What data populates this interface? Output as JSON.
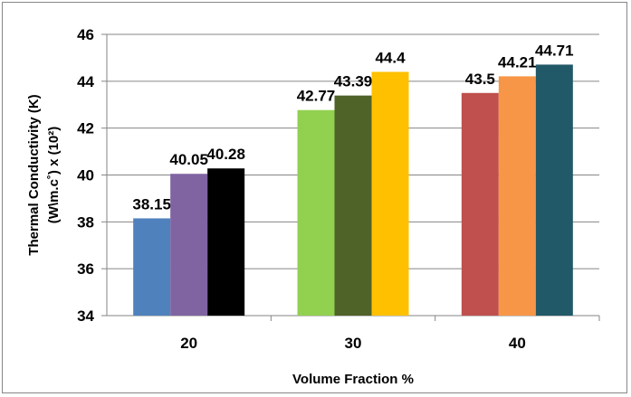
{
  "chart_data": {
    "type": "bar",
    "categories": [
      "20",
      "30",
      "40"
    ],
    "groups": [
      {
        "category": "20",
        "values": [
          38.15,
          40.05,
          40.28
        ],
        "labels": [
          "38.15",
          "40.05",
          "40.28"
        ],
        "colors": [
          "#4f81bd",
          "#8064a2",
          "#000000"
        ]
      },
      {
        "category": "30",
        "values": [
          42.77,
          43.39,
          44.4
        ],
        "labels": [
          "42.77",
          "43.39",
          "44.4"
        ],
        "colors": [
          "#92d050",
          "#4f6228",
          "#ffc000"
        ]
      },
      {
        "category": "40",
        "values": [
          43.5,
          44.21,
          44.71
        ],
        "labels": [
          "43.5",
          "44.21",
          "44.71"
        ],
        "colors": [
          "#c0504d",
          "#f79646",
          "#215968"
        ]
      }
    ],
    "y_ticks": [
      "34",
      "36",
      "38",
      "40",
      "42",
      "44",
      "46"
    ],
    "ylim": [
      34,
      46
    ],
    "ylabel_line1": "Thermal Conductivity (K)",
    "ylabel_line2": "(W\\m.c˚) x (10²)",
    "xlabel": "Volume Fraction %",
    "grid": true,
    "legend": "none"
  }
}
